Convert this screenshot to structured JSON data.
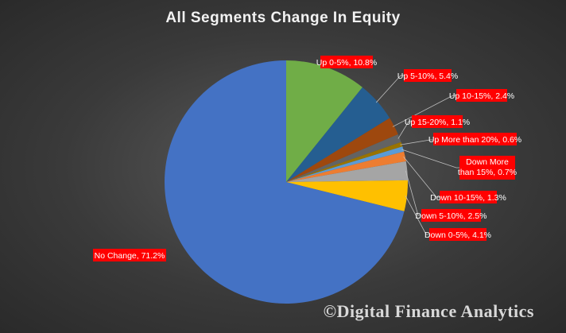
{
  "chart_data": {
    "type": "pie",
    "title": "All Segments  Change  In Equity",
    "slices": [
      {
        "label": "Up 0-5%",
        "value": 10.8,
        "display": "Up 0-5%, 10.8%",
        "color": "#70ad47"
      },
      {
        "label": "Up 5-10%",
        "value": 5.4,
        "display": "Up 5-10%, 5.4%",
        "color": "#255e91"
      },
      {
        "label": "Up 10-15%",
        "value": 2.4,
        "display": "Up 10-15%, 2.4%",
        "color": "#9e480e"
      },
      {
        "label": "Up 15-20%",
        "value": 1.1,
        "display": "Up 15-20%, 1.1%",
        "color": "#636363"
      },
      {
        "label": "Up More than 20%",
        "value": 0.6,
        "display": "Up More than 20%, 0.6%",
        "color": "#997300"
      },
      {
        "label": "Down More than 15%",
        "value": 0.7,
        "display": "Down More than 15%, 0.7%",
        "color": "#5b9bd5"
      },
      {
        "label": "Down 10-15%",
        "value": 1.3,
        "display": "Down 10-15%, 1.3%",
        "color": "#ed7d31"
      },
      {
        "label": "Down 5-10%",
        "value": 2.5,
        "display": "Down 5-10%, 2.5%",
        "color": "#a5a5a5"
      },
      {
        "label": "Down 0-5%",
        "value": 4.1,
        "display": "Down 0-5%, 4.1%",
        "color": "#ffc000"
      },
      {
        "label": "No Change",
        "value": 71.2,
        "display": "No Change, 71.2%",
        "color": "#4472c4"
      }
    ],
    "label_background": "#ff0000"
  },
  "watermark": "©Digital Finance Analytics"
}
